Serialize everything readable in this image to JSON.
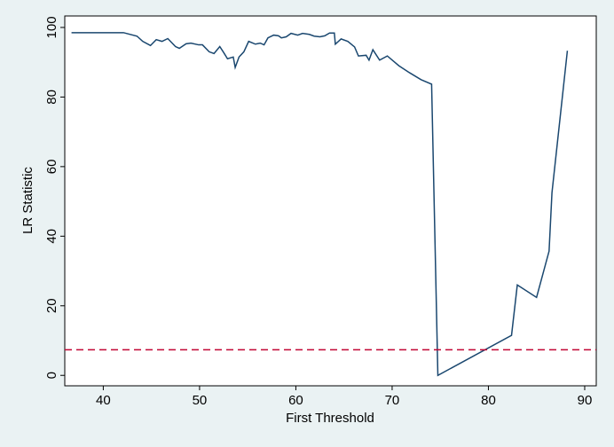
{
  "chart_data": {
    "type": "line",
    "xlabel": "First Threshold",
    "ylabel": "LR Statistic",
    "x": [
      36.7,
      42.1,
      43.5,
      44.1,
      44.9,
      45.5,
      46.1,
      46.7,
      47.5,
      47.9,
      48.6,
      49.1,
      49.9,
      50.3,
      51.0,
      51.5,
      52.1,
      52.5,
      52.9,
      53.5,
      53.7,
      54.1,
      54.6,
      55.1,
      55.8,
      56.3,
      56.7,
      57.1,
      57.7,
      58.2,
      58.5,
      59.0,
      59.5,
      60.2,
      60.7,
      61.4,
      61.9,
      62.5,
      63.0,
      63.5,
      64.0,
      64.1,
      64.7,
      65.4,
      66.1,
      66.5,
      67.3,
      67.6,
      68.0,
      68.7,
      69.5,
      70.7,
      71.8,
      73.0,
      74.1,
      74.75,
      82.4,
      83.0,
      85.0,
      86.3,
      86.6,
      88.2
    ],
    "values": [
      98.5,
      98.5,
      97.5,
      96,
      94.8,
      96.5,
      96,
      96.8,
      94.5,
      94,
      95.3,
      95.5,
      95,
      95,
      93,
      92.5,
      94.5,
      92.8,
      91,
      91.5,
      88.5,
      91.5,
      93,
      96,
      95.2,
      95.5,
      95,
      97,
      97.8,
      97.6,
      97,
      97.3,
      98.3,
      97.8,
      98.3,
      98,
      97.5,
      97.3,
      97.6,
      98.4,
      98.4,
      95.2,
      96.7,
      96,
      94.4,
      91.8,
      92,
      90.6,
      93.6,
      90.6,
      91.8,
      89,
      87,
      85,
      83.7,
      0,
      11.5,
      26,
      22.4,
      35.7,
      52.5,
      93.3
    ],
    "color": "#1a476f",
    "hline": {
      "value": 7.35,
      "color": "#c10534",
      "style": "dashed"
    },
    "xlim": [
      36,
      91.2
    ],
    "ylim": [
      -3,
      103.3
    ],
    "xticks": [
      40,
      50,
      60,
      70,
      80,
      90
    ],
    "yticks": [
      0,
      20,
      40,
      60,
      80,
      100
    ],
    "grid": false
  }
}
